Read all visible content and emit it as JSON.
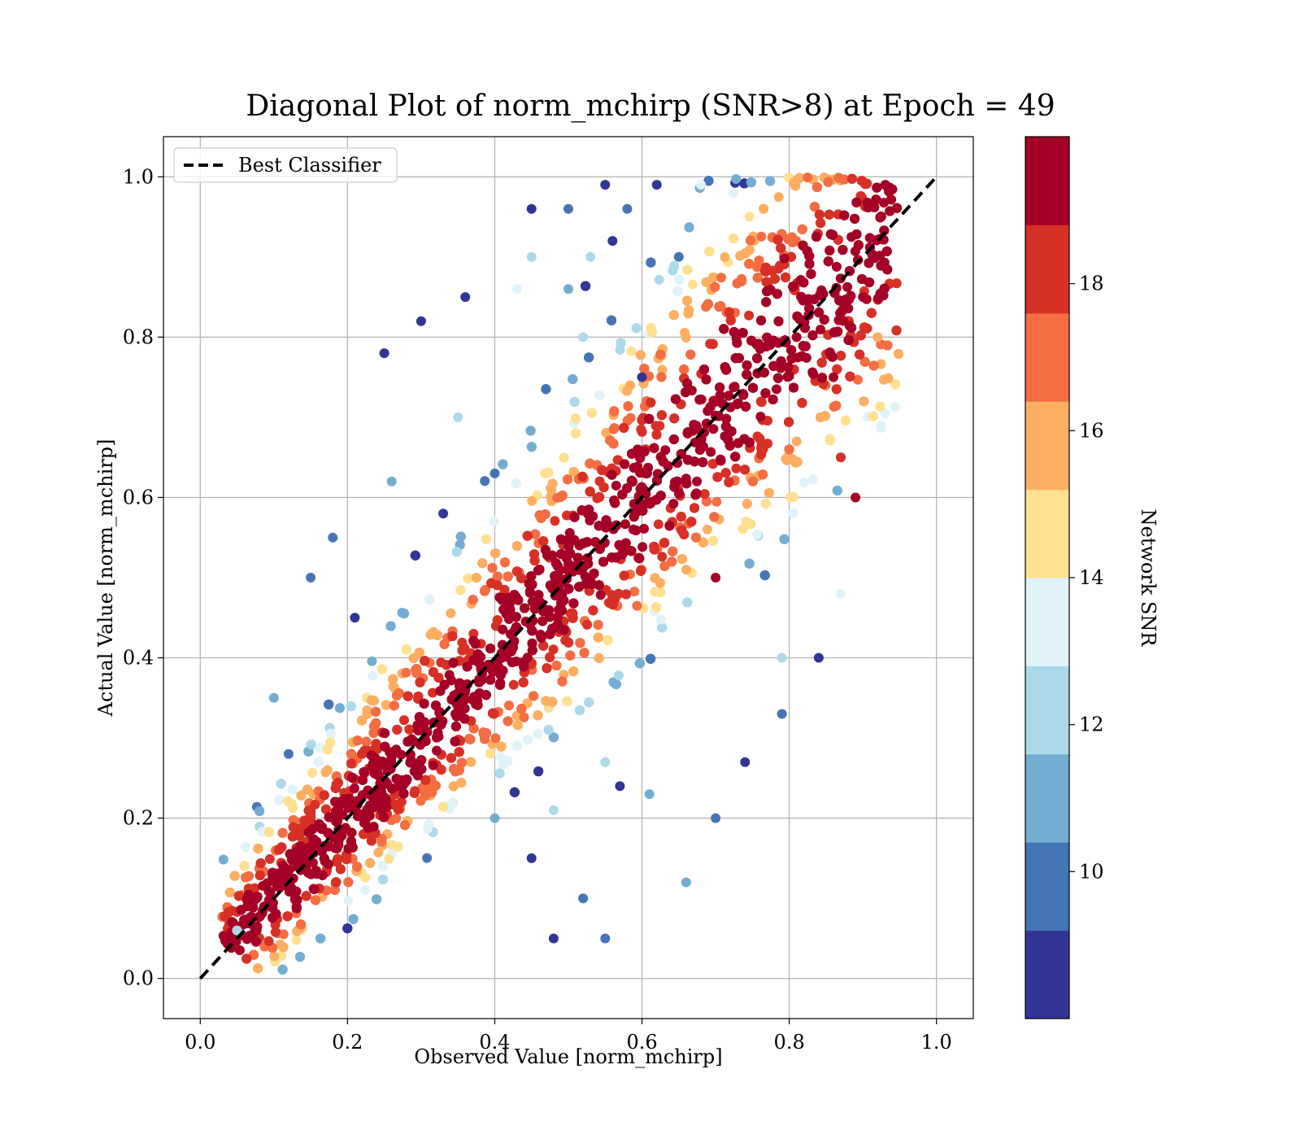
{
  "chart_data": {
    "type": "scatter",
    "title": "Diagonal Plot of norm_mchirp (SNR>8) at Epoch = 49",
    "xlabel": "Observed Value [norm_mchirp]",
    "ylabel": "Actual Value [norm_mchirp]",
    "xlim": [
      -0.05,
      1.05
    ],
    "ylim": [
      -0.05,
      1.05
    ],
    "xticks": [
      "0.0",
      "0.2",
      "0.4",
      "0.6",
      "0.8",
      "1.0"
    ],
    "yticks": [
      "0.0",
      "0.2",
      "0.4",
      "0.6",
      "0.8",
      "1.0"
    ],
    "grid": true,
    "legend": {
      "position": "top-left",
      "entries": [
        "Best Classifier"
      ]
    },
    "reference_line": {
      "name": "Best Classifier",
      "x": [
        0.0,
        1.0
      ],
      "y": [
        0.0,
        1.0
      ],
      "style": "dashed",
      "color": "#000000"
    },
    "colorbar": {
      "label": "Network SNR",
      "min": 8,
      "max": 20,
      "ticks": [
        "10",
        "12",
        "14",
        "16",
        "18"
      ],
      "tick_values": [
        10,
        12,
        14,
        16,
        18
      ],
      "colors": [
        "#313695",
        "#4575b4",
        "#74add1",
        "#abd9e9",
        "#e0f3f8",
        "#fee090",
        "#fdae61",
        "#f46d43",
        "#d73027",
        "#a50026"
      ]
    },
    "series": [
      {
        "x": [
          0.55,
          0.05,
          0.1,
          0.58,
          0.45,
          0.5,
          0.53,
          0.56,
          0.3,
          0.5,
          0.65,
          0.52,
          0.12,
          0.35,
          0.6,
          0.18,
          0.21,
          0.4,
          0.55,
          0.7,
          0.74,
          0.79,
          0.48,
          0.66,
          0.84,
          0.87,
          0.45,
          0.52,
          0.61,
          0.48,
          0.55,
          0.57,
          0.79,
          0.9,
          0.92,
          0.7,
          0.25,
          0.33,
          0.4,
          0.15,
          0.26,
          0.36,
          0.45,
          0.43,
          0.62,
          0.68,
          0.81,
          0.86,
          0.87,
          0.89
        ],
        "y": [
          0.99,
          0.06,
          0.35,
          0.96,
          0.96,
          0.96,
          0.9,
          0.92,
          0.82,
          0.86,
          0.9,
          0.8,
          0.28,
          0.7,
          0.75,
          0.55,
          0.45,
          0.2,
          0.27,
          0.2,
          0.27,
          0.33,
          0.05,
          0.12,
          0.4,
          0.48,
          0.15,
          0.1,
          0.23,
          0.21,
          0.05,
          0.24,
          0.4,
          0.85,
          0.8,
          0.5,
          0.78,
          0.58,
          0.63,
          0.5,
          0.62,
          0.85,
          0.9,
          0.86,
          0.99,
          0.99,
          0.8,
          0.75,
          0.65,
          0.6
        ],
        "snr": [
          9,
          12,
          11,
          10,
          9,
          10,
          12,
          9,
          9,
          11,
          10,
          12,
          10,
          12,
          9,
          10,
          9,
          11,
          12,
          10,
          9,
          10,
          9,
          11,
          9,
          13,
          9,
          10,
          11,
          12,
          10,
          9,
          12,
          19,
          16,
          19,
          9,
          9,
          10,
          10,
          11,
          9,
          12,
          13,
          9,
          13,
          19,
          19,
          18,
          19
        ]
      }
    ]
  }
}
